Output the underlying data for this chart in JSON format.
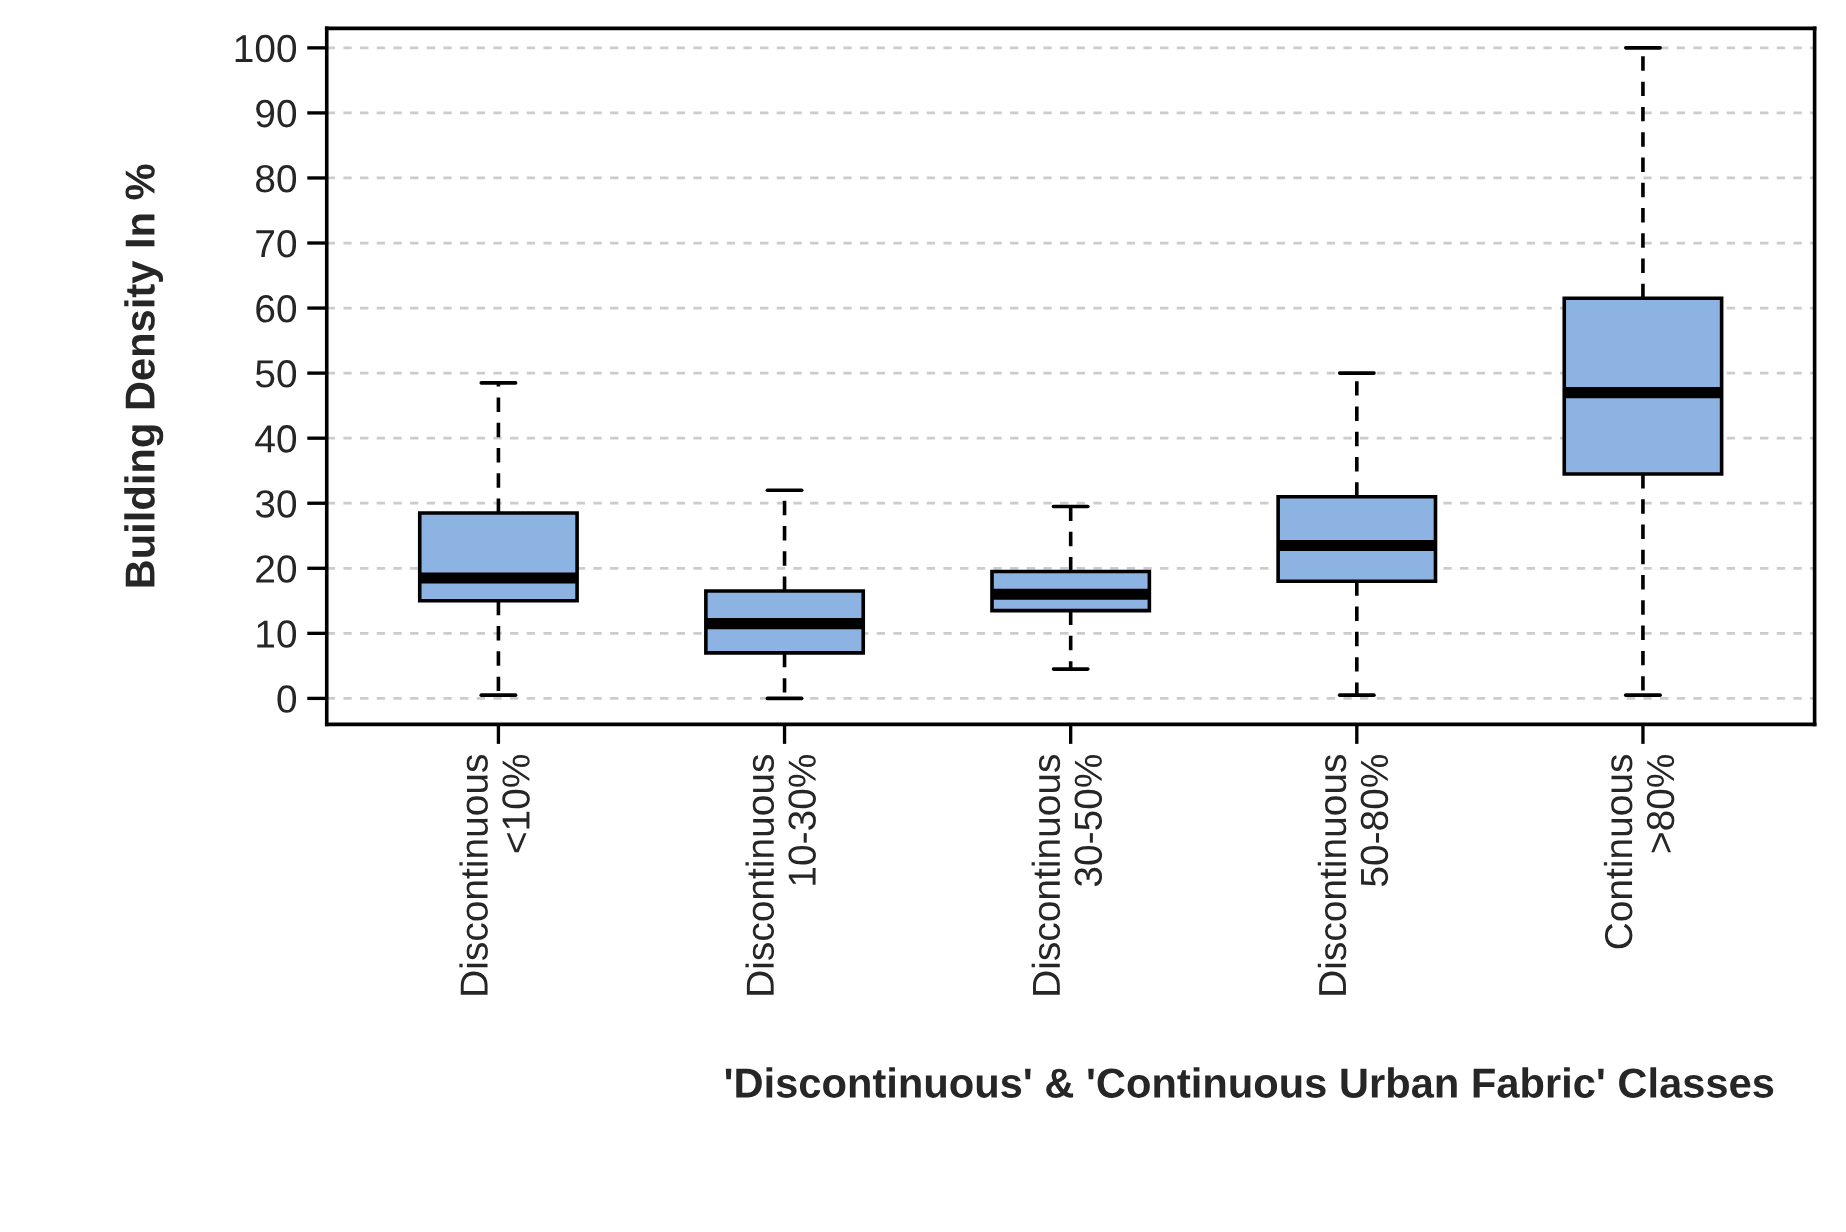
{
  "chart_data": {
    "type": "box",
    "xlabel": "'Discontinuous' & 'Continuous Urban Fabric' Classes",
    "ylabel": "Building Density In %",
    "categories": [
      "Discontinuous\n<10%",
      "Discontinuous\n10-30%",
      "Discontinuous\n30-50%",
      "Discontinuous\n50-80%",
      "Continuous\n>80%"
    ],
    "boxes": [
      {
        "low": 0.5,
        "q1": 15,
        "median": 18.5,
        "q3": 28.5,
        "high": 48.5
      },
      {
        "low": 0,
        "q1": 7,
        "median": 11.5,
        "q3": 16.5,
        "high": 32
      },
      {
        "low": 4.5,
        "q1": 13.5,
        "median": 16,
        "q3": 19.5,
        "high": 29.5
      },
      {
        "low": 0.5,
        "q1": 18,
        "median": 23.5,
        "q3": 31,
        "high": 50
      },
      {
        "low": 0.5,
        "q1": 34.5,
        "median": 47,
        "q3": 61.5,
        "high": 100
      }
    ],
    "color": "#8db3e2",
    "ylim": [
      -4,
      103
    ],
    "yticks": [
      0,
      10,
      20,
      30,
      40,
      50,
      60,
      70,
      80,
      90,
      100
    ],
    "grid": "y"
  }
}
